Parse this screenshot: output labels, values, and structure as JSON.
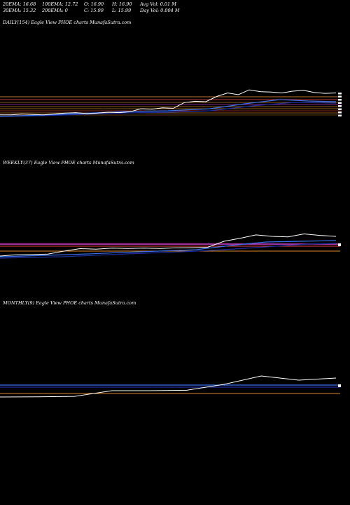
{
  "stats": {
    "ema20": "20EMA: 16.68",
    "ema100": "100EMA: 12.72",
    "open": "O: 16.90",
    "high": "H: 16.90",
    "avgvol": "Avg Vol: 0.01 M",
    "ema30": "30EMA: 15.32",
    "ema200": "200EMA: 0",
    "close": "C: 15.99",
    "low": "L: 15.99",
    "dayvol": "Day Vol: 0.004 M"
  },
  "panels": {
    "daily": "DAILY(154) Eagle   View  PHOE charts MunafaSutra.com",
    "weekly": "WEEKLY(37) Eagle   View  PHOE charts MunafaSutra.com",
    "monthly": "MONTHLY(9) Eagle   View  PHOE charts MunafaSutra.com"
  },
  "colors": {
    "price": "#ffffff",
    "ema_blue": "#3a6fe8",
    "ema_navy": "#1c2e9c",
    "band_orange": "#e08a2c",
    "band_red": "#e04040",
    "band_magenta": "#d040d0"
  },
  "chart_data": [
    {
      "type": "line",
      "title": "DAILY(154) Eagle   View  PHOE charts MunafaSutra.com",
      "series": [
        {
          "values": [
            11.0,
            11.0,
            11.2,
            11.1,
            11.0,
            11.2,
            11.4,
            11.5,
            11.3,
            11.4,
            11.6,
            11.5,
            11.7,
            12.4,
            12.3,
            12.6,
            12.5,
            13.8,
            14.1,
            14.0,
            15.2,
            16.0,
            15.6,
            16.7,
            16.3,
            16.2,
            16.0,
            16.4,
            16.6,
            16.1,
            15.9,
            16.0
          ]
        }
      ]
    },
    {
      "type": "line",
      "title": "WEEKLY(37) Eagle   View  PHOE charts MunafaSutra.com",
      "series": [
        {
          "values": [
            8.0,
            8.5,
            8.6,
            8.8,
            10.0,
            11.0,
            10.8,
            11.2,
            11.1,
            11.2,
            11.1,
            11.3,
            11.4,
            11.6,
            14.0,
            15.2,
            16.6,
            16.0,
            15.8,
            17.0,
            16.4,
            16.0
          ]
        }
      ]
    },
    {
      "type": "line",
      "title": "MONTHLY(9) Eagle   View  PHOE charts MunafaSutra.com",
      "series": [
        {
          "values": [
            8.0,
            8.1,
            8.3,
            11.0,
            11.0,
            11.2,
            14.0,
            18.0,
            16.0,
            17.0
          ]
        }
      ]
    }
  ]
}
